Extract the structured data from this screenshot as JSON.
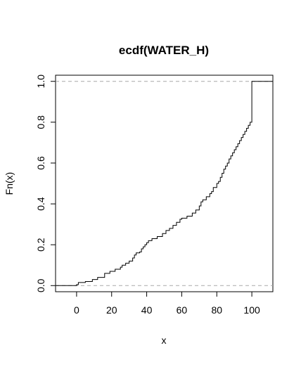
{
  "chart_data": {
    "type": "line",
    "title": "ecdf(WATER_H)",
    "xlabel": "x",
    "ylabel": "Fn(x)",
    "xlim": [
      -12,
      112
    ],
    "ylim": [
      -0.03,
      1.03
    ],
    "x_ticks": [
      0,
      20,
      40,
      60,
      80,
      100
    ],
    "x_tick_labels": [
      "0",
      "20",
      "40",
      "60",
      "80",
      "100"
    ],
    "y_ticks": [
      0.0,
      0.2,
      0.4,
      0.6,
      0.8,
      1.0
    ],
    "y_tick_labels": [
      "0.0",
      "0.2",
      "0.4",
      "0.6",
      "0.8",
      "1.0"
    ],
    "grid": false,
    "reference_lines_y": [
      0,
      1
    ],
    "series": [
      {
        "x": [
          -12,
          0,
          1,
          5,
          9,
          12,
          16,
          19,
          22,
          25,
          26,
          28,
          30,
          32,
          33,
          34,
          36,
          37,
          38,
          39,
          40,
          41,
          43,
          46,
          49,
          51,
          53,
          55,
          57,
          59,
          60,
          63,
          66,
          68,
          70,
          71,
          72,
          74,
          76,
          77,
          78,
          80,
          81,
          82,
          83,
          84,
          85,
          86,
          87,
          88,
          89,
          90,
          91,
          92,
          93,
          94,
          95,
          96,
          97,
          98,
          99,
          100,
          112
        ],
        "y": [
          0.0,
          0.005,
          0.015,
          0.02,
          0.03,
          0.04,
          0.06,
          0.07,
          0.08,
          0.09,
          0.1,
          0.11,
          0.12,
          0.135,
          0.15,
          0.16,
          0.165,
          0.18,
          0.19,
          0.2,
          0.21,
          0.22,
          0.23,
          0.24,
          0.255,
          0.27,
          0.28,
          0.295,
          0.31,
          0.325,
          0.33,
          0.34,
          0.355,
          0.37,
          0.39,
          0.41,
          0.42,
          0.435,
          0.45,
          0.46,
          0.48,
          0.5,
          0.51,
          0.53,
          0.55,
          0.57,
          0.585,
          0.6,
          0.62,
          0.635,
          0.65,
          0.665,
          0.68,
          0.695,
          0.71,
          0.725,
          0.74,
          0.755,
          0.77,
          0.785,
          0.8,
          1.0,
          1.0
        ]
      }
    ]
  }
}
